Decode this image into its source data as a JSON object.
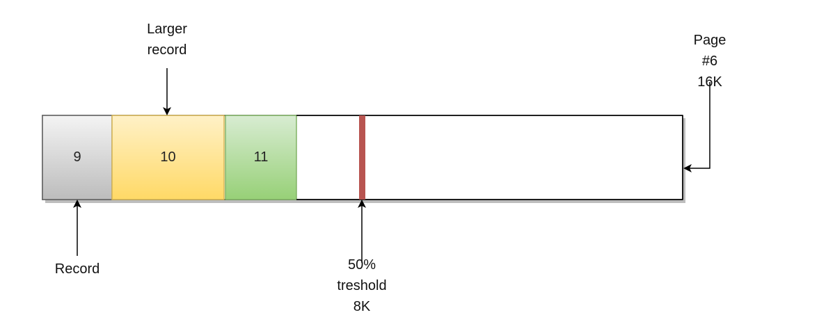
{
  "page": {
    "label": "Page\n#6\n16K"
  },
  "records": [
    {
      "id": "9",
      "fill_top": "#f4f4f4",
      "fill_bottom": "#bcbcbc",
      "stroke": "#666666"
    },
    {
      "id": "10",
      "fill_top": "#fff1c7",
      "fill_bottom": "#ffd966",
      "stroke": "#d6b656"
    },
    {
      "id": "11",
      "fill_top": "#d8ecd2",
      "fill_bottom": "#97d077",
      "stroke": "#82b366"
    }
  ],
  "annotations": {
    "larger_record": "Larger\nrecord",
    "record": "Record",
    "threshold": "50%\ntreshold\n8K"
  },
  "colors": {
    "threshold_marker": "#b85450",
    "outline": "#000000",
    "shadow": "#bdbdbd"
  }
}
